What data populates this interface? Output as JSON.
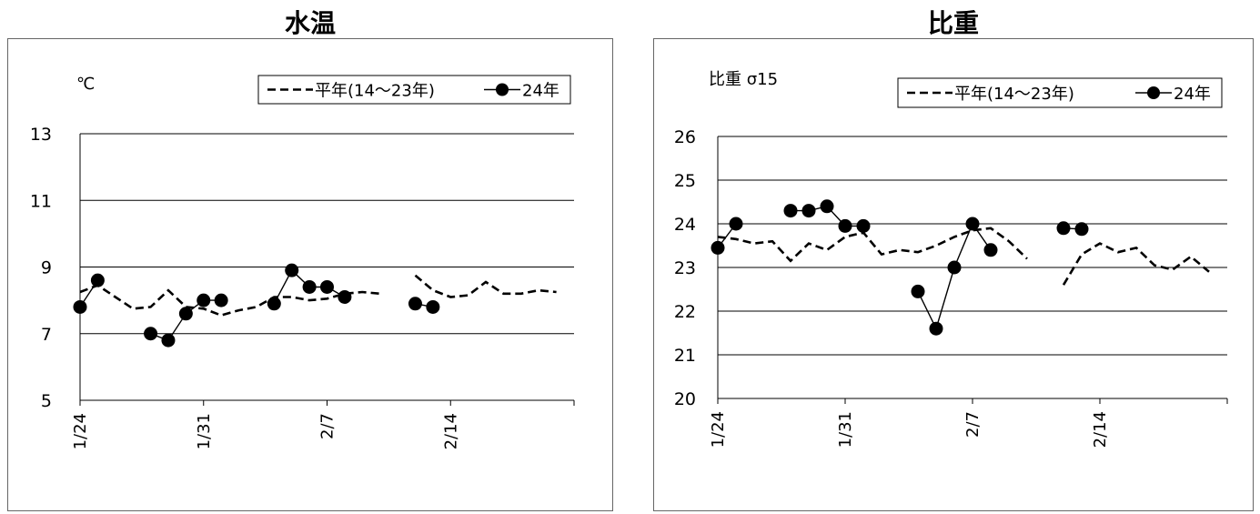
{
  "chart_data": [
    {
      "type": "line",
      "title": "水温",
      "ylabel": "℃",
      "ylim": [
        5,
        13
      ],
      "yticks": [
        5,
        7,
        9,
        11,
        13
      ],
      "hgrid": [
        7,
        9,
        11,
        13
      ],
      "xticks": [
        {
          "day": 0,
          "label": "1/24"
        },
        {
          "day": 7,
          "label": "1/31"
        },
        {
          "day": 14,
          "label": "2/7"
        },
        {
          "day": 21,
          "label": "2/14"
        }
      ],
      "legend": [
        "平年(14～23年)",
        "24年"
      ],
      "series": [
        {
          "name": "平年(14～23年)",
          "style": "dashed",
          "x": [
            0,
            1,
            2,
            3,
            4,
            5,
            6,
            7,
            8,
            9,
            10,
            11,
            12,
            13,
            14,
            15,
            16,
            17,
            null,
            19,
            20,
            21,
            22,
            23,
            24,
            25,
            26,
            27
          ],
          "y": [
            8.25,
            8.45,
            8.1,
            7.75,
            7.8,
            8.3,
            7.8,
            7.75,
            7.55,
            7.7,
            7.8,
            8.1,
            8.1,
            8.0,
            8.05,
            8.2,
            8.25,
            8.2,
            null,
            8.75,
            8.3,
            8.1,
            8.15,
            8.55,
            8.2,
            8.2,
            8.3,
            8.25
          ]
        },
        {
          "name": "24年",
          "style": "solid-marker",
          "x": [
            0,
            1,
            null,
            4,
            5,
            6,
            7,
            8,
            null,
            11,
            12,
            13,
            14,
            15,
            null,
            19,
            20
          ],
          "y": [
            7.8,
            8.6,
            null,
            7.0,
            6.8,
            7.6,
            8.0,
            8.0,
            null,
            7.9,
            8.9,
            8.4,
            8.4,
            8.1,
            null,
            7.9,
            7.8
          ]
        }
      ]
    },
    {
      "type": "line",
      "title": "比重",
      "ylabel": "比重  σ15",
      "ylim": [
        20,
        26
      ],
      "yticks": [
        20,
        21,
        22,
        23,
        24,
        25,
        26
      ],
      "hgrid": [
        21,
        22,
        23,
        24,
        25,
        26
      ],
      "xticks": [
        {
          "day": 0,
          "label": "1/24"
        },
        {
          "day": 7,
          "label": "1/31"
        },
        {
          "day": 14,
          "label": "2/7"
        },
        {
          "day": 21,
          "label": "2/14"
        }
      ],
      "legend": [
        "平年(14～23年)",
        "24年"
      ],
      "series": [
        {
          "name": "平年(14～23年)",
          "style": "dashed",
          "x": [
            0,
            1,
            2,
            3,
            4,
            5,
            6,
            7,
            8,
            9,
            10,
            11,
            12,
            13,
            14,
            15,
            16,
            17,
            null,
            19,
            20,
            21,
            22,
            23,
            24,
            25,
            26,
            27
          ],
          "y": [
            23.7,
            23.65,
            23.55,
            23.6,
            23.15,
            23.55,
            23.4,
            23.7,
            23.8,
            23.3,
            23.4,
            23.35,
            23.5,
            23.7,
            23.85,
            23.9,
            23.6,
            23.2,
            null,
            22.6,
            23.3,
            23.55,
            23.35,
            23.45,
            23.05,
            22.95,
            23.25,
            22.9
          ]
        },
        {
          "name": "24年",
          "style": "solid-marker",
          "x": [
            0,
            1,
            null,
            4,
            5,
            6,
            7,
            8,
            null,
            11,
            12,
            13,
            14,
            15,
            null,
            19,
            20
          ],
          "y": [
            23.45,
            24.0,
            null,
            24.3,
            24.3,
            24.4,
            23.95,
            23.95,
            null,
            22.45,
            21.6,
            23.0,
            24.0,
            23.4,
            null,
            23.9,
            23.88
          ]
        }
      ]
    }
  ]
}
